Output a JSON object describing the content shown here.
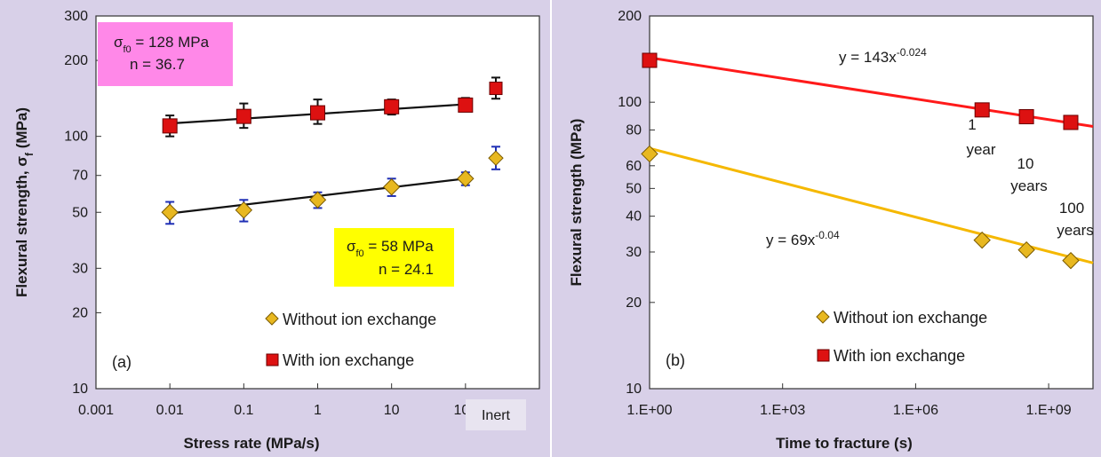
{
  "chart_data": [
    {
      "type": "scatter",
      "panel_label": "(a)",
      "xlabel": "Stress rate (MPa/s)",
      "ylabel": "Flexural strength, σ",
      "ylabel_sub": "f",
      "ylabel_unit": " (MPa)",
      "x_scale": "log",
      "y_scale": "log",
      "xlim": [
        0.001,
        1000
      ],
      "ylim": [
        10,
        300
      ],
      "x_ticks": [
        "0.001",
        "0.01",
        "0.1",
        "1",
        "10",
        "100"
      ],
      "x_tick_values": [
        0.001,
        0.01,
        0.1,
        1,
        10,
        100
      ],
      "y_ticks": [
        "10",
        "20",
        "30",
        "50",
        "70",
        "100",
        "200",
        "300"
      ],
      "y_tick_values": [
        10,
        20,
        30,
        50,
        70,
        100,
        200,
        300
      ],
      "inert_label": "Inert",
      "series": [
        {
          "name": "Without ion exchange",
          "marker": "diamond",
          "color": "#e8b820",
          "error_color": "#1f2fb5",
          "x": [
            0.01,
            0.1,
            1,
            10,
            100
          ],
          "y": [
            50,
            51,
            56,
            63,
            68
          ],
          "err_low": [
            45,
            46,
            52,
            58,
            64
          ],
          "err_high": [
            55,
            56,
            60,
            68,
            72
          ],
          "inert": {
            "y": 82,
            "err_low": 74,
            "err_high": 91
          },
          "fit": {
            "x": [
              0.01,
              100
            ],
            "y": [
              49.5,
              68
            ]
          },
          "box_lines": [
            "σf0 = 58 MPa",
            "n = 24.1"
          ],
          "box_color": "#ffff00"
        },
        {
          "name": "With ion exchange",
          "marker": "square",
          "color": "#dd1111",
          "error_color": "#111111",
          "x": [
            0.01,
            0.1,
            1,
            10,
            100
          ],
          "y": [
            110,
            120,
            124,
            131,
            133
          ],
          "err_low": [
            100,
            108,
            112,
            122,
            126
          ],
          "err_high": [
            121,
            135,
            140,
            140,
            142
          ],
          "inert": {
            "y": 155,
            "err_low": 141,
            "err_high": 171
          },
          "fit": {
            "x": [
              0.01,
              100
            ],
            "y": [
              112.5,
              134
            ]
          },
          "box_lines": [
            "σf0 = 128 MPa",
            "n = 36.7"
          ],
          "box_color": "#ff88e8"
        }
      ],
      "box_texts": {
        "red_line1_sigma": "σ",
        "red_line1_sub": "f0",
        "red_line1_rest": " = 128 MPa",
        "red_line2": "n = 36.7",
        "yellow_line1_sigma": "σ",
        "yellow_line1_sub": "f0",
        "yellow_line1_rest": " = 58 MPa",
        "yellow_line2": "n = 24.1"
      },
      "legend": [
        "Without ion exchange",
        "With ion exchange"
      ],
      "legend_position": "bottom-right"
    },
    {
      "type": "scatter",
      "panel_label": "(b)",
      "xlabel": "Time to fracture (s)",
      "ylabel": "Flexural strength (MPa)",
      "x_scale": "log",
      "y_scale": "log",
      "xlim": [
        1,
        10000000000
      ],
      "ylim": [
        10,
        200
      ],
      "x_ticks": [
        "1.E+00",
        "1.E+03",
        "1.E+06",
        "1.E+09"
      ],
      "x_tick_values": [
        1,
        1000,
        1000000,
        1000000000
      ],
      "y_ticks": [
        "10",
        "20",
        "30",
        "40",
        "50",
        "60",
        "80",
        "100",
        "200"
      ],
      "y_tick_values": [
        10,
        20,
        30,
        40,
        50,
        60,
        80,
        100,
        200
      ],
      "series": [
        {
          "name": "Without ion exchange",
          "marker": "diamond",
          "color": "#e8b820",
          "line_color": "#f5b800",
          "x": [
            1,
            31536000,
            315360000,
            3153600000
          ],
          "y": [
            66,
            33,
            30.5,
            28
          ],
          "fit_equation_base": "y = 69x",
          "fit_equation_exp": "-0.04",
          "fit": {
            "a": 69,
            "b": -0.04
          }
        },
        {
          "name": "With ion exchange",
          "marker": "square",
          "color": "#dd1111",
          "line_color": "#ff1a1a",
          "x": [
            1,
            31536000,
            315360000,
            3153600000
          ],
          "y": [
            140,
            94,
            89,
            85
          ],
          "fit_equation_base": "y = 143x",
          "fit_equation_exp": "-0.024",
          "fit": {
            "a": 143,
            "b": -0.024
          }
        }
      ],
      "time_annotations": [
        {
          "lines": [
            "1",
            "year"
          ]
        },
        {
          "lines": [
            "10",
            "years"
          ]
        },
        {
          "lines": [
            "100",
            "years"
          ]
        }
      ],
      "legend": [
        "Without ion exchange",
        "With ion exchange"
      ],
      "legend_position": "bottom-right"
    }
  ],
  "colors": {
    "outer_background": "#d8d0e8",
    "plot_background": "#ffffff",
    "inert_box": "#e8e4f0"
  }
}
